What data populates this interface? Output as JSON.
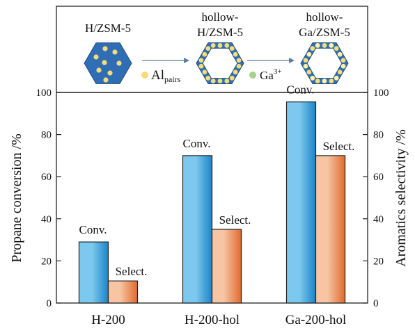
{
  "colors": {
    "conv_light": "#7cc8ee",
    "conv_dark": "#1a84c8",
    "select_light": "#f7c5a3",
    "select_dark": "#e06a2f",
    "hexagon_fill": "#2f6db5",
    "hexagon_edge": "#1f4f8a",
    "al_dot": "#f4dd78",
    "ga_dot": "#a7d18a",
    "arrow": "#5b7ba8"
  },
  "scheme": {
    "step1_label": "H/ZSM-5",
    "step2_label_line1": "hollow-",
    "step2_label_line2": "H/ZSM-5",
    "step3_label_line1": "hollow-",
    "step3_label_line2": "Ga/ZSM-5",
    "legend_al_main": "Al",
    "legend_al_sub": "pairs",
    "legend_ga_main": "Ga",
    "legend_ga_sup": "3+",
    "al_icon": "yellow-dot",
    "ga_icon": "green-dot",
    "arrow_icon": "right-arrow"
  },
  "chart_data": {
    "type": "bar",
    "categories": [
      "H-200",
      "H-200-hol",
      "Ga-200-hol"
    ],
    "series": [
      {
        "name": "Conv.",
        "axis": "left",
        "values": [
          29,
          70,
          95.5
        ]
      },
      {
        "name": "Select.",
        "axis": "right",
        "values": [
          10.5,
          35,
          70
        ]
      }
    ],
    "bar_labels": {
      "conv": [
        "Conv.",
        "Conv.",
        "Conv."
      ],
      "select": [
        "Select.",
        "Select.",
        "Select."
      ]
    },
    "ylabel": "Propane conversion /%",
    "y2label": "Aromatics selectivity /%",
    "ylim": [
      0,
      100
    ],
    "y2lim": [
      0,
      100
    ],
    "yticks": [
      "0",
      "20",
      "40",
      "60",
      "80",
      "100"
    ],
    "y2ticks": [
      "0",
      "20",
      "40",
      "60",
      "80",
      "100"
    ],
    "grid": false,
    "legend": "none"
  }
}
